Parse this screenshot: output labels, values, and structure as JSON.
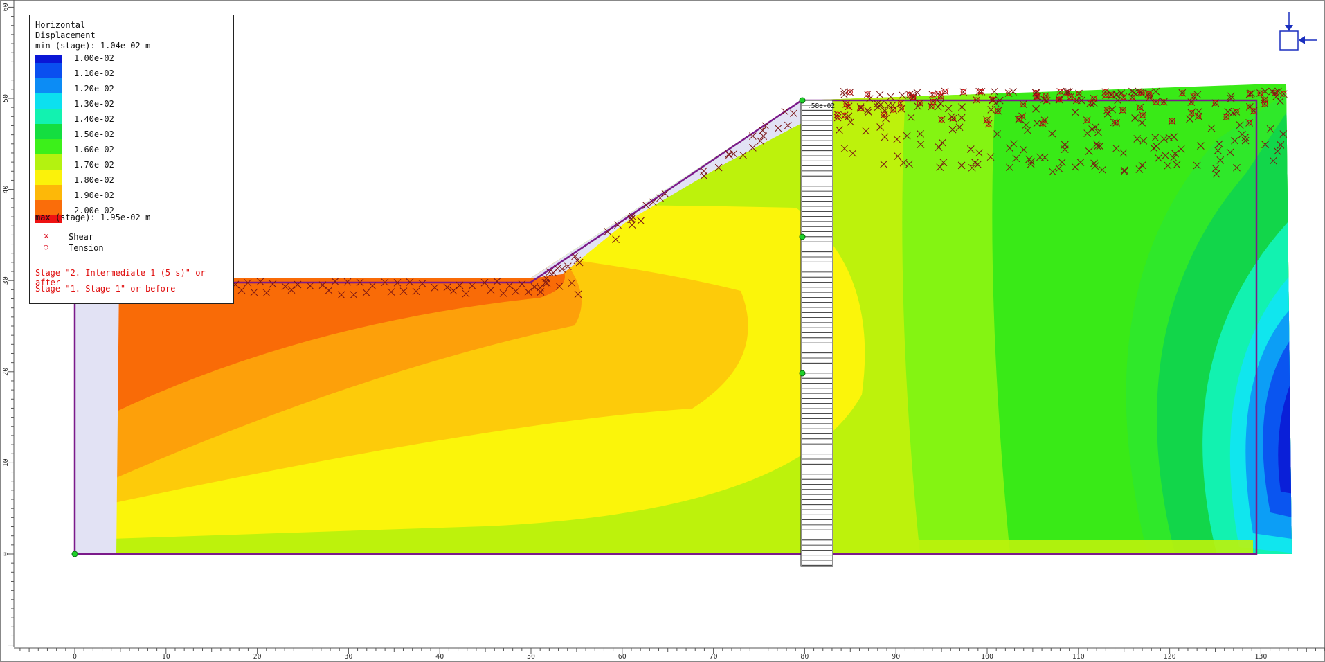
{
  "legend": {
    "title_line1": "Horizontal",
    "title_line2": "Displacement",
    "min_label": "min (stage): 1.04e-02 m",
    "max_label": "max (stage): 1.95e-02 m",
    "scale": [
      {
        "value": "1.00e-02",
        "color": "#0a16d6"
      },
      {
        "value": "1.10e-02",
        "color": "#0a4ff0"
      },
      {
        "value": "1.20e-02",
        "color": "#0c8cf5"
      },
      {
        "value": "1.30e-02",
        "color": "#0ce0ef"
      },
      {
        "value": "1.40e-02",
        "color": "#12f2b0"
      },
      {
        "value": "1.50e-02",
        "color": "#14de40"
      },
      {
        "value": "1.60e-02",
        "color": "#3cf01a"
      },
      {
        "value": "1.70e-02",
        "color": "#b4f210"
      },
      {
        "value": "1.80e-02",
        "color": "#fbf20a"
      },
      {
        "value": "1.90e-02",
        "color": "#fdb808"
      },
      {
        "value": "2.00e-02",
        "color": "#fa6d0a"
      }
    ],
    "bottom_color": "#ee1212",
    "markers": [
      {
        "symbol": "×",
        "label": "Shear"
      },
      {
        "symbol": "○",
        "label": "Tension"
      }
    ],
    "stages": [
      "Stage \"2. Intermediate 1 (5 s)\" or after",
      "Stage \"1. Stage 1\" or before"
    ]
  },
  "pile_label": ".58e-02",
  "axes": {
    "y_ticks": [
      "60",
      "50",
      "40",
      "30",
      "20",
      "10",
      "0"
    ],
    "x_ticks": [
      "0",
      "10",
      "20",
      "30",
      "40",
      "50",
      "60",
      "70",
      "80",
      "90",
      "100",
      "110",
      "120",
      "130"
    ]
  },
  "icons": {
    "view_control": "restraint-arrows-icon"
  }
}
